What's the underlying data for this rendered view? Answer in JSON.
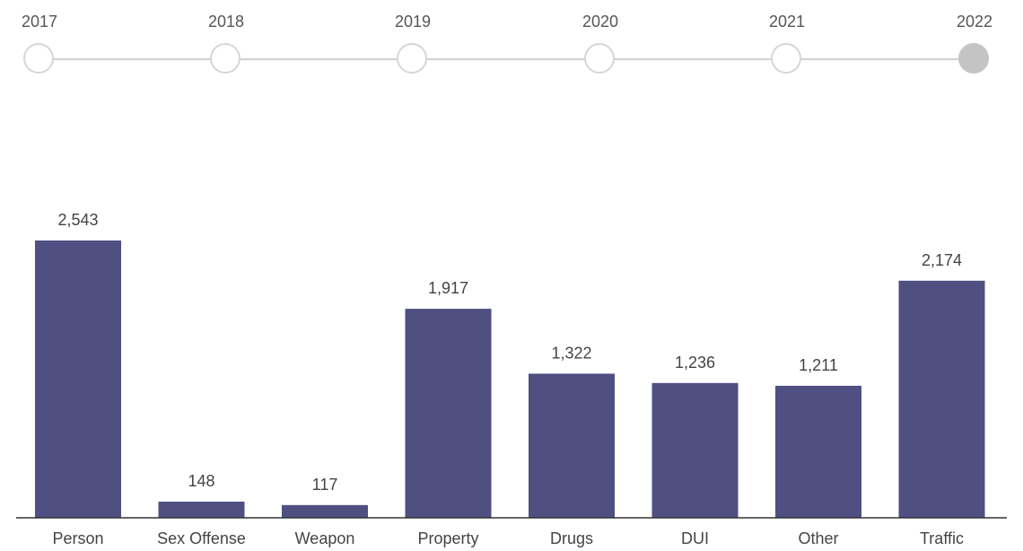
{
  "timeline": {
    "years": [
      "2017",
      "2018",
      "2019",
      "2020",
      "2021",
      "2022"
    ],
    "selected": "2022"
  },
  "chart_data": {
    "type": "bar",
    "categories": [
      "Person",
      "Sex Offense",
      "Weapon",
      "Property",
      "Drugs",
      "DUI",
      "Other",
      "Traffic"
    ],
    "values": [
      2543,
      148,
      117,
      1917,
      1322,
      1236,
      1211,
      2174
    ],
    "value_labels": [
      "2,543",
      "148",
      "117",
      "1,917",
      "1,322",
      "1,236",
      "1,211",
      "2,174"
    ],
    "title": "",
    "xlabel": "",
    "ylabel": "",
    "ylim": [
      0,
      2543
    ],
    "grid": false,
    "bar_color": "#4f4f82"
  }
}
